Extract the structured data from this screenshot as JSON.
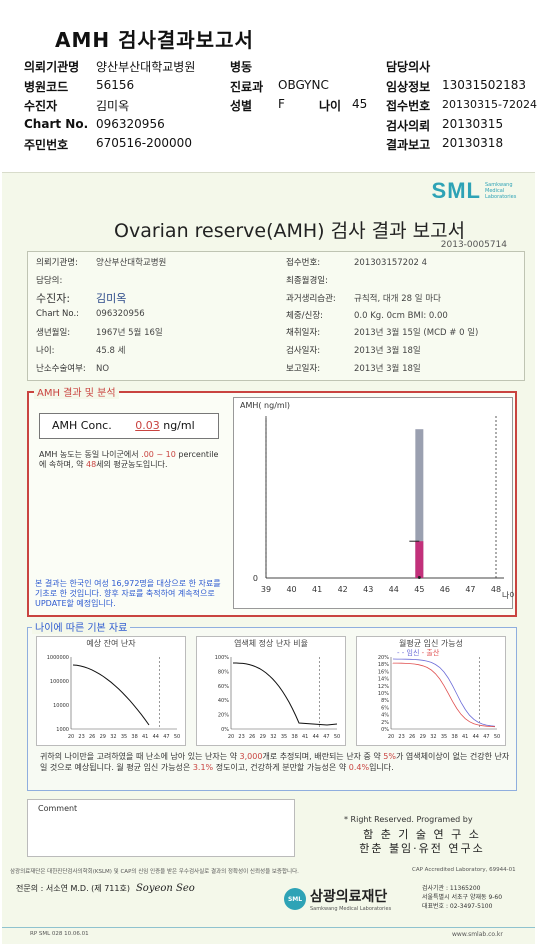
{
  "header": {
    "title": "AMH 검사결과보고서",
    "rows": [
      {
        "c1k": "의뢰기관명",
        "c1v": "양산부산대학교병원",
        "c2k": "병동",
        "c2v": "",
        "c3k": "담당의사",
        "c3v": ""
      },
      {
        "c1k": "병원코드",
        "c1v": "56156",
        "c2k": "진료과",
        "c2v": "OBGYNC",
        "c3k": "임상정보",
        "c3v": "13031502183"
      },
      {
        "c1k": "수진자",
        "c1v": "김미옥",
        "c2k": "성별",
        "c2v": "F",
        "c2bk": "나이",
        "c2bv": "45",
        "c3k": "접수번호",
        "c3v": "20130315-72024"
      },
      {
        "c1k": "Chart No.",
        "c1v": "096320956",
        "c2k": "",
        "c2v": "",
        "c3k": "검사의뢰",
        "c3v": "20130315"
      },
      {
        "c1k": "주민번호",
        "c1v": "670516-200000",
        "c2k": "",
        "c2v": "",
        "c3k": "결과보고",
        "c3v": "20130318"
      }
    ]
  },
  "report": {
    "logo": "SML",
    "logo_sub": "Samkwang Medical Laboratories",
    "title": "Ovarian reserve(AMH) 검사 결과 보고서",
    "doc_no": "2013-0005714",
    "info_left": [
      {
        "k": "의뢰기관명:",
        "v": "양산부산대학교병원"
      },
      {
        "k": "담당의:",
        "v": ""
      },
      {
        "k": "수진자:",
        "v": "김미옥"
      },
      {
        "k": "Chart No.:",
        "v": "096320956"
      },
      {
        "k": "생년월일:",
        "v": "1967년 5월 16일"
      },
      {
        "k": "나이:",
        "v": "45.8 세"
      },
      {
        "k": "난소수술여부:",
        "v": "NO"
      }
    ],
    "info_right": [
      {
        "k": "접수번호:",
        "v": "201303157202 4"
      },
      {
        "k": "최종월경일:",
        "v": ""
      },
      {
        "k": "과거생리습관:",
        "v": "규칙적, 대개  28 일 마다"
      },
      {
        "k": "체중/신장:",
        "v": "0.0 Kg.     0cm   BMI:    0.00"
      },
      {
        "k": "채취일자:",
        "v": "2013년 3월 15일  (MCD #  0 일)"
      },
      {
        "k": "검사일자:",
        "v": "2013년 3월 18일"
      },
      {
        "k": "보고일자:",
        "v": "2013년 3월 18일"
      }
    ],
    "amh_section_label": "AMH 결과 및 분석",
    "conc_label": "AMH Conc.",
    "conc_value": "0.03",
    "conc_unit": "ng/ml",
    "desc_1": "AMH 농도는 동일 나이군에서",
    "desc_range": ".00 ~ 10",
    "desc_2": "percentile에 속하며, 약",
    "desc_age": "48",
    "desc_3": "세의 평균농도입니다.",
    "note": "본 결과는 한국인 여성 16,972명을 대상으로 한 자료를 기초로 한 것입니다. 향후 자료를 축적하여 계속적으로 UPDATE할 예정입니다.",
    "chart_ylabel": "AMH( ng/ml)",
    "chart_xlabel": "나이",
    "base_section_label": "나이에 따른 기본 자료",
    "mini1_title": "예상 잔여 난자",
    "mini2_title": "염색체 정상 난자 비율",
    "mini3_title": "월평균 임신 가능성",
    "mini3_legend_1": "임신",
    "mini3_legend_2": "출산",
    "base_text_1": "귀하의 나이만을 고려하였을 때 난소에 남아 있는 난자는 약",
    "base_count": "3,000",
    "base_text_2": "개로 추정되며, 배란되는 난자 중 약",
    "base_pct1": "5%",
    "base_text_3": "가 염색체이상이 없는 건강한 난자일 것으로 예상됩니다. 월 평균 임신 가능성은",
    "base_pct2": "3.1%",
    "base_text_4": "정도이고, 건강하게 분만할 가능성은 약",
    "base_pct3": "0.4%",
    "base_text_5": "입니다.",
    "comment_label": "Comment",
    "rights": "* Right Reserved. Programed by",
    "inst_1": "함 춘 기 술 연 구 소",
    "inst_2": "한춘 불임·유전 연구소",
    "foot_note": "삼광의료재단은 대한진단검사의학회(KSLM) 및 CAP의 신임 인증을 받은 우수검사실로 결과의 정확성이 신뢰성을 보증합니다.",
    "cap": "CAP Accredited Laboratory, 69944-01",
    "sign_label": "전문의 : 서소연 M.D. (제 711호)",
    "sign_name": "Soyeon Seo",
    "found_logo": "SML",
    "found_name": "삼광의료재단",
    "found_sub": "Samkwang Medical Laboratories",
    "addr_1": "검사기관 : 11365200",
    "addr_2": "서울특별시 서초구 양재동 9-60",
    "addr_3": "대표번호 : 02-3497-5100",
    "bl_left": "RP SML 028  10.06.01",
    "bl_right": "www.smlab.co.kr"
  },
  "chart_data": [
    {
      "type": "bar",
      "title": "",
      "ylabel": "AMH( ng/ml)",
      "xlabel": "나이",
      "categories": [
        "39",
        "40",
        "41",
        "42",
        "43",
        "44",
        "45",
        "46",
        "47",
        "48"
      ],
      "ylim": [
        0,
        10
      ],
      "ytick": "0",
      "patient_value": {
        "age": "45",
        "value": 0.03
      },
      "series": [
        {
          "values": [
            null,
            null,
            null,
            null,
            null,
            null,
            9.3,
            null,
            null,
            null
          ]
        },
        {
          "values": [
            null,
            null,
            null,
            null,
            null,
            null,
            2.3,
            null,
            null,
            null
          ]
        }
      ],
      "ref_lines": [
        "39",
        "48"
      ]
    },
    {
      "type": "line",
      "title": "예상 잔여 난자",
      "x_ticks": [
        "20",
        "23",
        "26",
        "29",
        "32",
        "35",
        "38",
        "41",
        "44",
        "47",
        "50"
      ],
      "y_ticks": [
        "1000000",
        "100000",
        "10000",
        "1000"
      ],
      "y_scale": "log",
      "marker_x": "45"
    },
    {
      "type": "line",
      "title": "염색체 정상 난자 비율",
      "x_ticks": [
        "20",
        "23",
        "26",
        "29",
        "32",
        "35",
        "38",
        "41",
        "44",
        "47",
        "50"
      ],
      "y_ticks": [
        "100%",
        "80%",
        "60%",
        "40%",
        "20%",
        "0%"
      ],
      "marker_x": "45"
    },
    {
      "type": "line",
      "title": "월평균 임신 가능성",
      "x_ticks": [
        "20",
        "23",
        "26",
        "29",
        "32",
        "35",
        "38",
        "41",
        "44",
        "47",
        "50"
      ],
      "y_ticks": [
        "20%",
        "18%",
        "16%",
        "14%",
        "12%",
        "10%",
        "8%",
        "6%",
        "4%",
        "2%",
        "0%"
      ],
      "series": [
        {
          "name": "임신"
        },
        {
          "name": "출산"
        }
      ],
      "marker_x": "45"
    }
  ],
  "colors": {
    "accent": "#c94440",
    "blue": "#2d5ad0",
    "logo": "#2ea3b6",
    "bar_gray": "#9aa0b0",
    "bar_pink": "#c2307a"
  }
}
